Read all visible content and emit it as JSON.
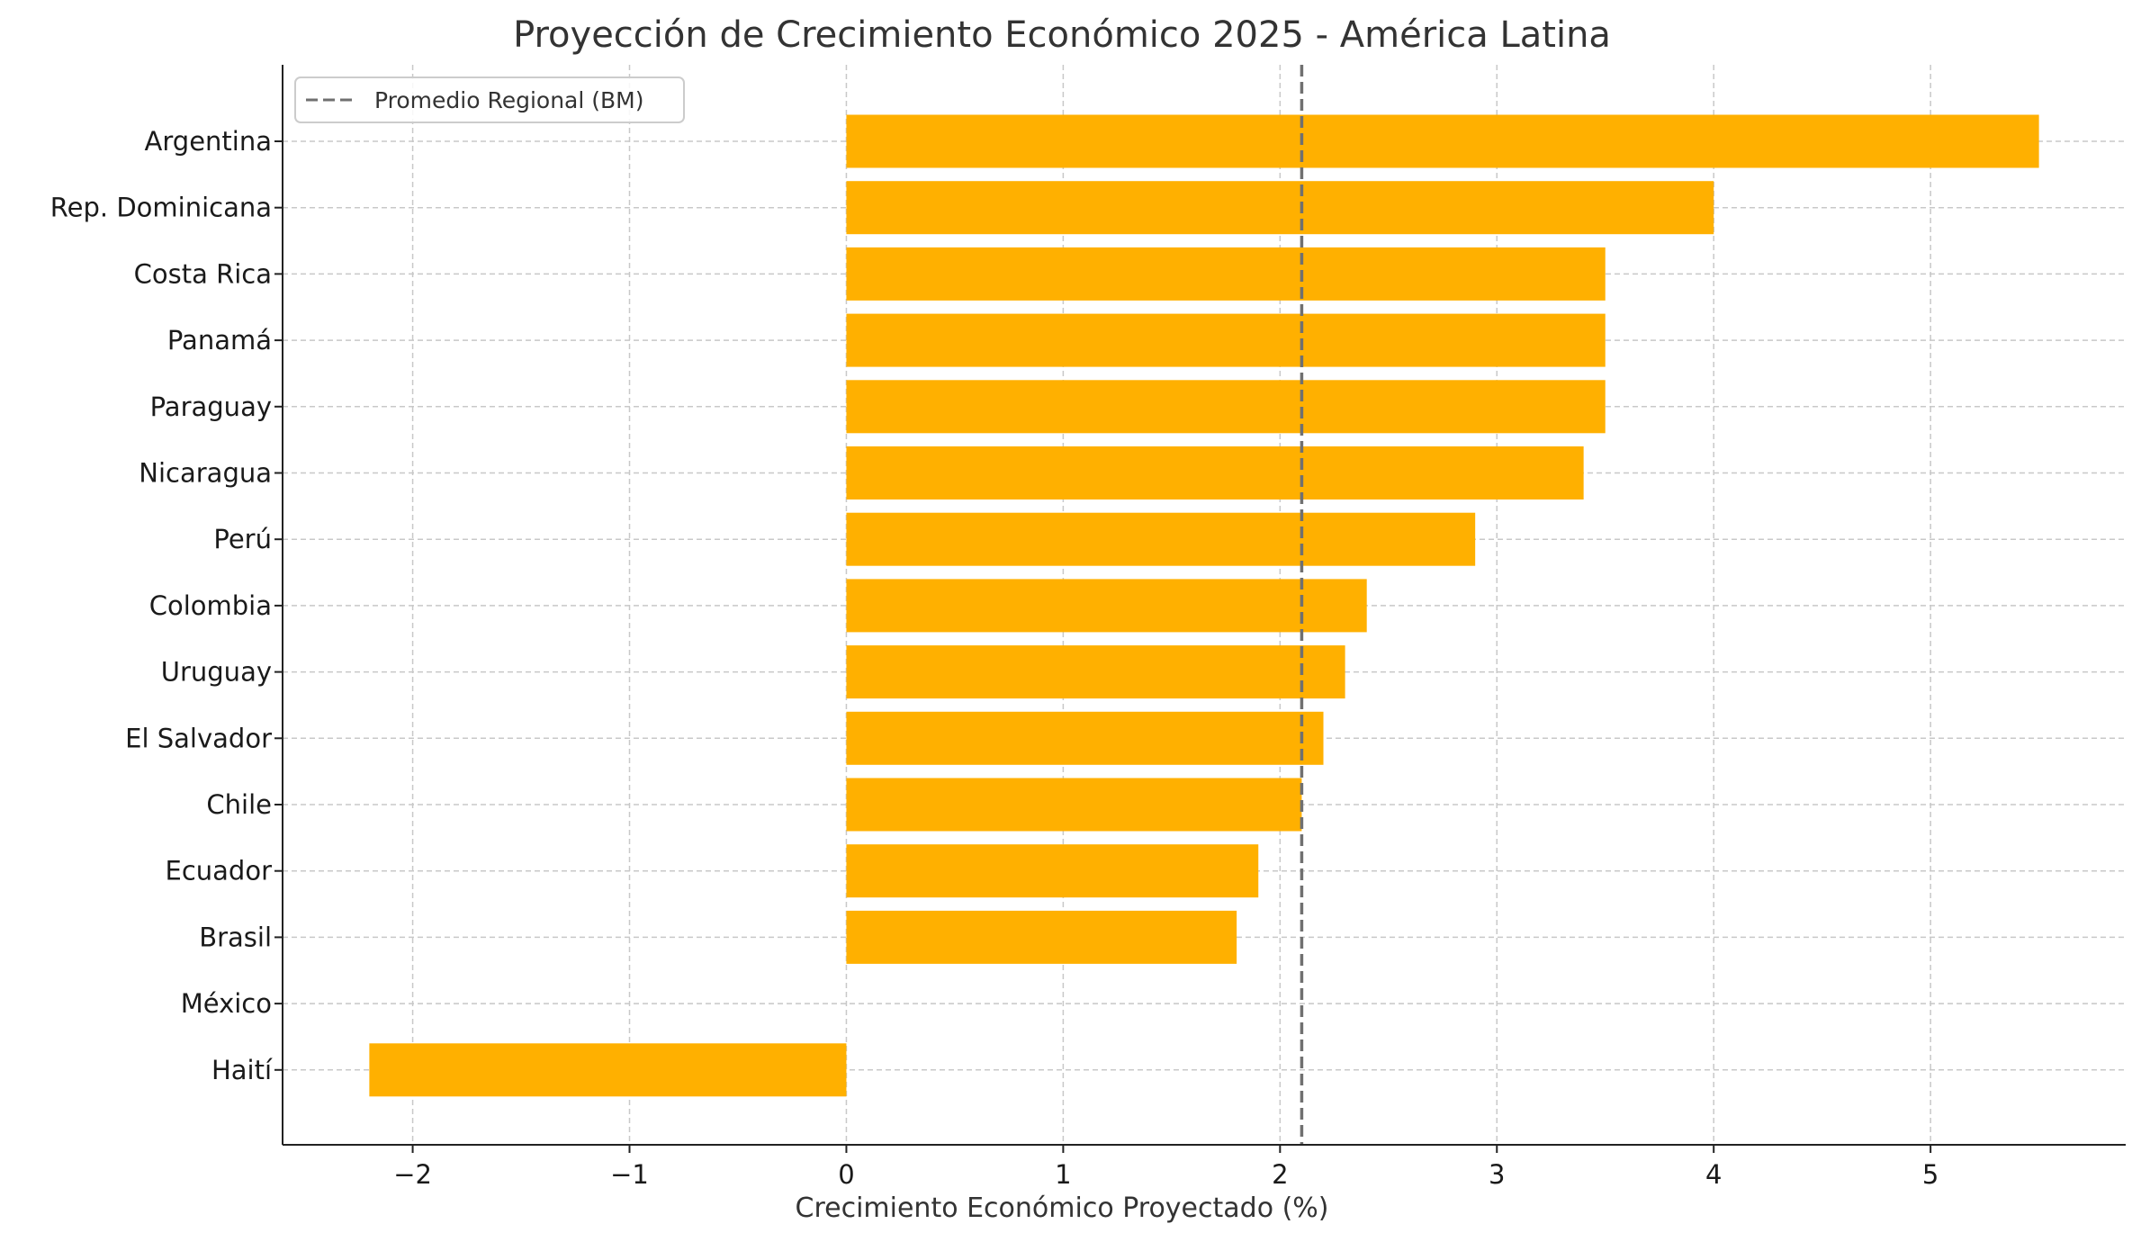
{
  "chart_data": {
    "type": "bar",
    "orientation": "horizontal",
    "title": "Proyección de Crecimiento Económico 2025 - América Latina",
    "xlabel": "Crecimiento Económico Proyectado (%)",
    "ylabel": "",
    "categories": [
      "Argentina",
      "Rep. Dominicana",
      "Costa Rica",
      "Panamá",
      "Paraguay",
      "Nicaragua",
      "Perú",
      "Colombia",
      "Uruguay",
      "El Salvador",
      "Chile",
      "Ecuador",
      "Brasil",
      "México",
      "Haití"
    ],
    "values": [
      5.5,
      4.0,
      3.5,
      3.5,
      3.5,
      3.4,
      2.9,
      2.4,
      2.3,
      2.2,
      2.1,
      1.9,
      1.8,
      0.0,
      -2.2
    ],
    "xlim": [
      -2.6,
      5.9
    ],
    "xticks": [
      -2,
      -1,
      0,
      1,
      2,
      3,
      4,
      5
    ],
    "xtick_labels": [
      "−2",
      "−1",
      "0",
      "1",
      "2",
      "3",
      "4",
      "5"
    ],
    "grid": true,
    "bar_color": "#FFB000",
    "reference_line": {
      "name": "Promedio Regional (BM)",
      "value": 2.1,
      "style": "dashed",
      "color": "#707070"
    },
    "legend_position": "top-left"
  }
}
